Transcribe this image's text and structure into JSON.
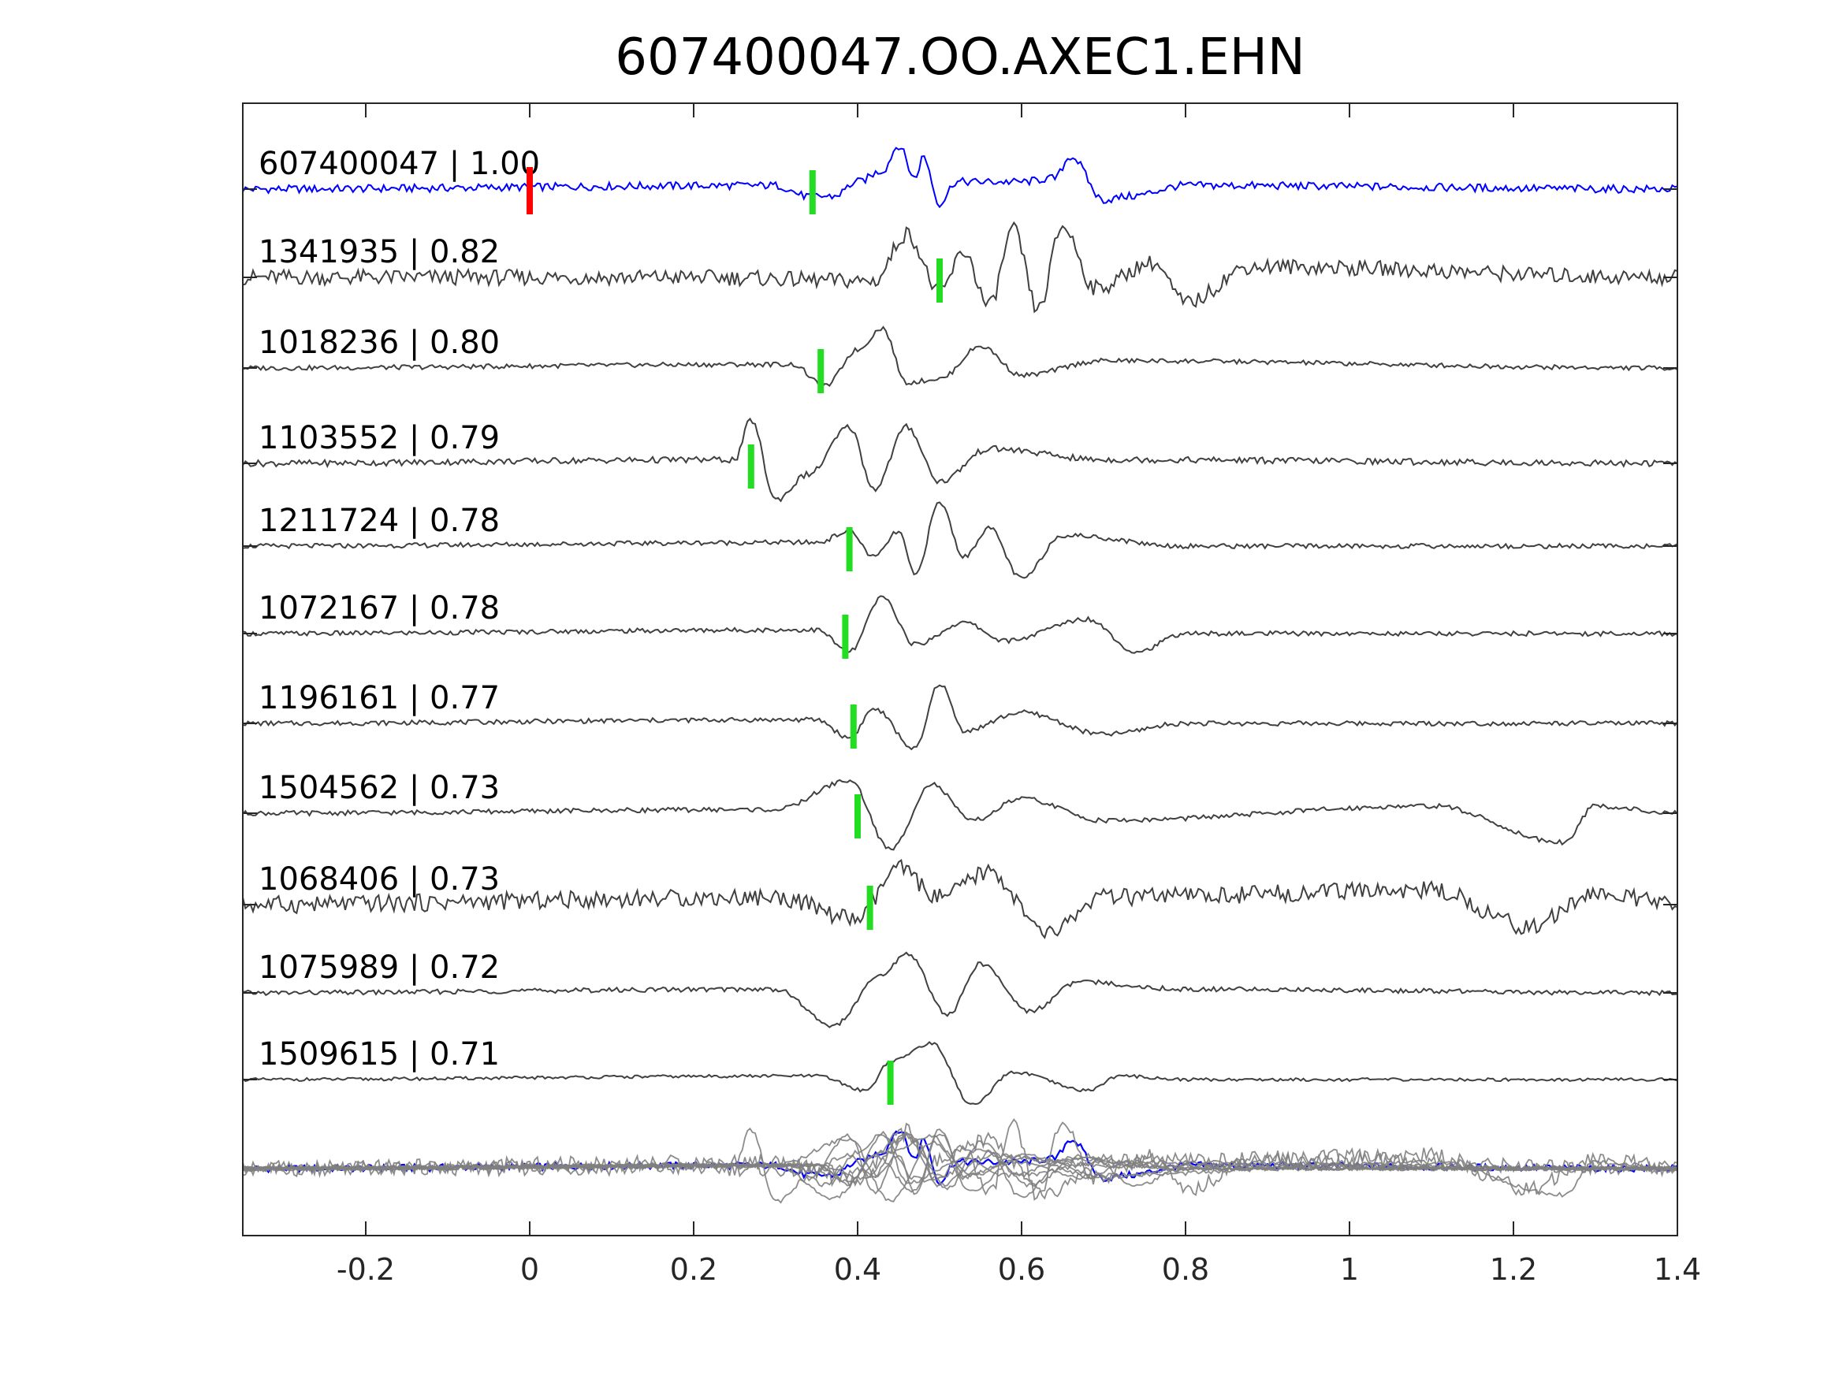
{
  "chart_data": {
    "type": "line",
    "title": "607400047.OO.AXEC1.EHN",
    "xlabel": "",
    "ylabel": "",
    "xlim": [
      -0.35,
      1.4
    ],
    "x_ticks": [
      -0.2,
      0,
      0.2,
      0.4,
      0.6,
      0.8,
      1,
      1.2,
      1.4
    ],
    "x_tick_labels": [
      "-0.2",
      "0",
      "0.2",
      "0.4",
      "0.6",
      "0.8",
      "1",
      "1.2",
      "1.4"
    ],
    "grid": false,
    "series": [
      {
        "name": "607400047 | 1.00",
        "color": "#0000ff",
        "pick": 0.345,
        "reference_pick": 0.0,
        "reference_pick_color": "#ff0000",
        "waveform": [
          [
            -0.35,
            0
          ],
          [
            0.3,
            0.1
          ],
          [
            0.34,
            -0.2
          ],
          [
            0.37,
            -0.2
          ],
          [
            0.4,
            0.2
          ],
          [
            0.43,
            0.5
          ],
          [
            0.45,
            1.2
          ],
          [
            0.47,
            0.3
          ],
          [
            0.48,
            0.9
          ],
          [
            0.5,
            -0.4
          ],
          [
            0.52,
            0.2
          ],
          [
            0.6,
            0.2
          ],
          [
            0.64,
            0.3
          ],
          [
            0.66,
            0.9
          ],
          [
            0.7,
            -0.3
          ],
          [
            0.73,
            -0.2
          ],
          [
            0.8,
            0.1
          ],
          [
            1.4,
            0
          ]
        ]
      },
      {
        "name": "1341935 | 0.82",
        "color": "#404040",
        "pick": 0.5,
        "waveform": [
          [
            -0.35,
            0
          ],
          [
            0.2,
            0
          ],
          [
            0.42,
            -0.1
          ],
          [
            0.46,
            1.2
          ],
          [
            0.5,
            -0.4
          ],
          [
            0.53,
            0.7
          ],
          [
            0.56,
            -0.8
          ],
          [
            0.59,
            1.3
          ],
          [
            0.62,
            -0.9
          ],
          [
            0.65,
            1.4
          ],
          [
            0.69,
            -0.3
          ],
          [
            0.76,
            0.4
          ],
          [
            0.8,
            -0.7
          ],
          [
            0.88,
            0.3
          ],
          [
            1.4,
            0
          ]
        ]
      },
      {
        "name": "1018236 | 0.80",
        "color": "#404040",
        "pick": 0.355,
        "waveform": [
          [
            -0.35,
            0
          ],
          [
            0.32,
            0.1
          ],
          [
            0.36,
            -0.5
          ],
          [
            0.4,
            0.5
          ],
          [
            0.43,
            1.1
          ],
          [
            0.46,
            -0.4
          ],
          [
            0.5,
            -0.3
          ],
          [
            0.55,
            0.6
          ],
          [
            0.6,
            -0.2
          ],
          [
            0.7,
            0.2
          ],
          [
            1.4,
            0
          ]
        ]
      },
      {
        "name": "1103552 | 0.79",
        "color": "#404040",
        "pick": 0.27,
        "waveform": [
          [
            -0.35,
            0
          ],
          [
            0.25,
            0.1
          ],
          [
            0.27,
            1.2
          ],
          [
            0.3,
            -1.0
          ],
          [
            0.34,
            -0.3
          ],
          [
            0.39,
            1.0
          ],
          [
            0.42,
            -0.7
          ],
          [
            0.46,
            1.0
          ],
          [
            0.5,
            -0.5
          ],
          [
            0.56,
            0.4
          ],
          [
            0.7,
            0.1
          ],
          [
            1.4,
            0
          ]
        ]
      },
      {
        "name": "1211724 | 0.78",
        "color": "#404040",
        "pick": 0.39,
        "waveform": [
          [
            -0.35,
            0
          ],
          [
            0.35,
            0.1
          ],
          [
            0.39,
            0.4
          ],
          [
            0.42,
            -0.3
          ],
          [
            0.45,
            0.4
          ],
          [
            0.47,
            -0.8
          ],
          [
            0.5,
            1.2
          ],
          [
            0.53,
            -0.3
          ],
          [
            0.56,
            0.5
          ],
          [
            0.6,
            -0.9
          ],
          [
            0.65,
            0.3
          ],
          [
            0.8,
            0
          ],
          [
            1.4,
            0
          ]
        ]
      },
      {
        "name": "1072167 | 0.78",
        "color": "#404040",
        "pick": 0.385,
        "waveform": [
          [
            -0.35,
            0
          ],
          [
            0.35,
            0.1
          ],
          [
            0.39,
            -0.5
          ],
          [
            0.43,
            1.0
          ],
          [
            0.47,
            -0.3
          ],
          [
            0.53,
            0.3
          ],
          [
            0.58,
            -0.2
          ],
          [
            0.68,
            0.4
          ],
          [
            0.74,
            -0.5
          ],
          [
            0.8,
            0
          ],
          [
            1.4,
            0
          ]
        ]
      },
      {
        "name": "1196161 | 0.77",
        "color": "#404040",
        "pick": 0.395,
        "waveform": [
          [
            -0.35,
            0
          ],
          [
            0.35,
            0.1
          ],
          [
            0.39,
            -0.4
          ],
          [
            0.42,
            0.4
          ],
          [
            0.47,
            -0.7
          ],
          [
            0.5,
            1.1
          ],
          [
            0.53,
            -0.2
          ],
          [
            0.6,
            0.3
          ],
          [
            0.7,
            -0.3
          ],
          [
            0.8,
            0
          ],
          [
            1.4,
            0
          ]
        ]
      },
      {
        "name": "1504562 | 0.73",
        "color": "#404040",
        "pick": 0.4,
        "waveform": [
          [
            -0.35,
            0
          ],
          [
            0.3,
            0.1
          ],
          [
            0.39,
            0.9
          ],
          [
            0.44,
            -1.0
          ],
          [
            0.49,
            0.8
          ],
          [
            0.54,
            -0.2
          ],
          [
            0.6,
            0.4
          ],
          [
            0.7,
            -0.2
          ],
          [
            1.1,
            0.2
          ],
          [
            1.26,
            -0.8
          ],
          [
            1.3,
            0.2
          ],
          [
            1.4,
            0
          ]
        ]
      },
      {
        "name": "1068406 | 0.73",
        "color": "#404040",
        "pick": 0.415,
        "waveform": [
          [
            -0.35,
            0
          ],
          [
            0.3,
            0.2
          ],
          [
            0.4,
            -0.4
          ],
          [
            0.45,
            1.0
          ],
          [
            0.5,
            0.2
          ],
          [
            0.56,
            0.9
          ],
          [
            0.63,
            -0.8
          ],
          [
            0.7,
            0.2
          ],
          [
            1.1,
            0.4
          ],
          [
            1.22,
            -0.6
          ],
          [
            1.3,
            0.3
          ],
          [
            1.4,
            0
          ]
        ]
      },
      {
        "name": "1075989 | 0.72",
        "color": "#404040",
        "pick": null,
        "waveform": [
          [
            -0.35,
            0
          ],
          [
            0.3,
            0.1
          ],
          [
            0.37,
            -0.9
          ],
          [
            0.43,
            0.5
          ],
          [
            0.46,
            1.1
          ],
          [
            0.51,
            -0.6
          ],
          [
            0.55,
            0.8
          ],
          [
            0.61,
            -0.5
          ],
          [
            0.67,
            0.3
          ],
          [
            0.8,
            0.1
          ],
          [
            1.4,
            0
          ]
        ]
      },
      {
        "name": "1509615 | 0.71",
        "color": "#404040",
        "pick": 0.44,
        "waveform": [
          [
            -0.35,
            0
          ],
          [
            0.35,
            0.1
          ],
          [
            0.41,
            -0.3
          ],
          [
            0.44,
            0.5
          ],
          [
            0.49,
            1.0
          ],
          [
            0.54,
            -0.7
          ],
          [
            0.59,
            0.2
          ],
          [
            0.68,
            -0.3
          ],
          [
            0.72,
            0.1
          ],
          [
            0.8,
            0
          ],
          [
            1.4,
            0
          ]
        ]
      }
    ],
    "stack_color": "#808080",
    "stack_reference_color": "#0000ff"
  }
}
